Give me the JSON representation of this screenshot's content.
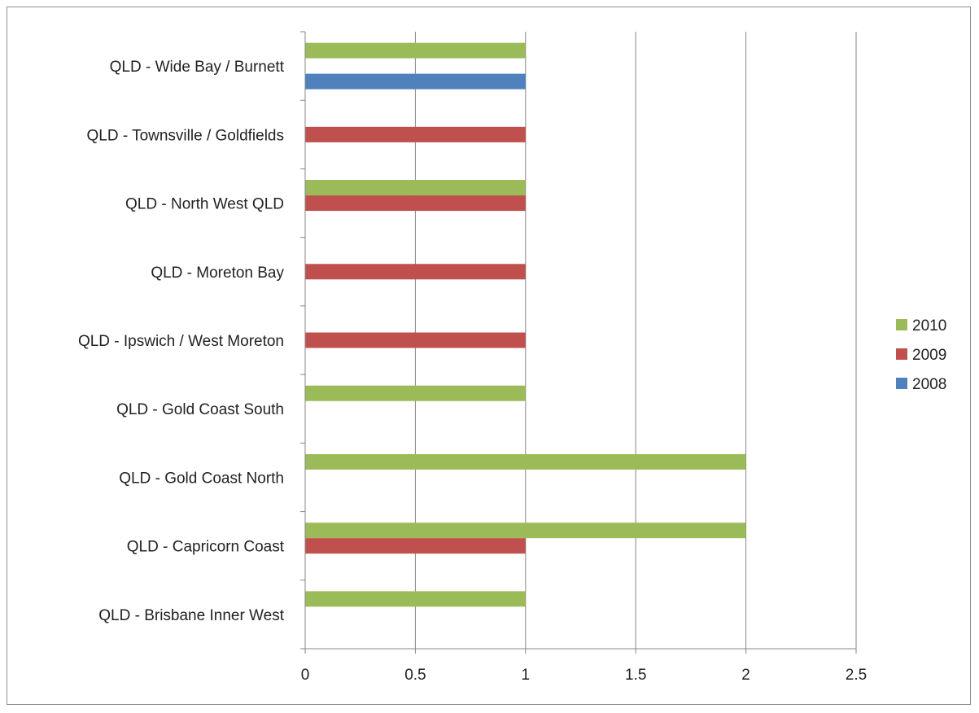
{
  "chart_data": {
    "type": "bar",
    "orientation": "horizontal",
    "categories": [
      "QLD - Brisbane Inner West",
      "QLD - Capricorn Coast",
      "QLD - Gold Coast North",
      "QLD - Gold Coast South",
      "QLD - Ipswich / West Moreton",
      "QLD - Moreton Bay",
      "QLD - North West QLD",
      "QLD - Townsville / Goldfields",
      "QLD - Wide Bay / Burnett"
    ],
    "series": [
      {
        "name": "2008",
        "color": "#4f81bd",
        "values": [
          0,
          0,
          0,
          0,
          0,
          0,
          0,
          0,
          1
        ]
      },
      {
        "name": "2009",
        "color": "#c0504d",
        "values": [
          0,
          1,
          0,
          0,
          1,
          1,
          1,
          1,
          0
        ]
      },
      {
        "name": "2010",
        "color": "#9bbb59",
        "values": [
          1,
          2,
          2,
          1,
          0,
          0,
          1,
          0,
          1
        ]
      }
    ],
    "xlim": [
      0,
      2.5
    ],
    "x_ticks": [
      "0",
      "0.5",
      "1",
      "1.5",
      "2",
      "2.5"
    ],
    "grid": true,
    "legend": {
      "placement": "right",
      "order": [
        "2010",
        "2009",
        "2008"
      ]
    },
    "title": "",
    "xlabel": "",
    "ylabel": ""
  }
}
